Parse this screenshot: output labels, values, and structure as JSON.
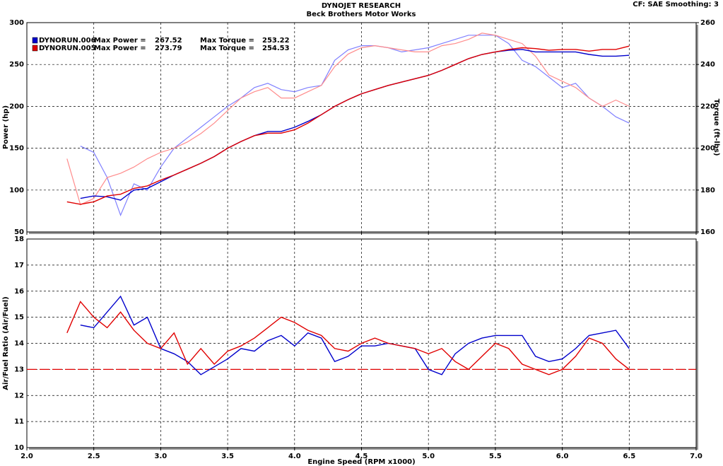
{
  "header": {
    "title": "DYNOJET RESEARCH",
    "subtitle": "Beck Brothers Motor Works",
    "settings": "CF: SAE  Smoothing: 3"
  },
  "chart_data": [
    {
      "type": "line",
      "ylabel": "Power (hp)",
      "y2label": "Torque (ft-lbs)",
      "legend_labels": {
        "power": "Max Power =",
        "torque": "Max Torque ="
      },
      "x": [
        2.3,
        2.4,
        2.5,
        2.6,
        2.7,
        2.8,
        2.9,
        3.0,
        3.1,
        3.2,
        3.3,
        3.4,
        3.5,
        3.6,
        3.7,
        3.8,
        3.9,
        4.0,
        4.1,
        4.2,
        4.3,
        4.4,
        4.5,
        4.6,
        4.7,
        4.8,
        4.9,
        5.0,
        5.1,
        5.2,
        5.3,
        5.4,
        5.5,
        5.6,
        5.7,
        5.8,
        5.9,
        6.0,
        6.1,
        6.2,
        6.3,
        6.4,
        6.5
      ],
      "xlim": [
        2,
        7
      ],
      "ylim": [
        50,
        300
      ],
      "yticks": [
        50,
        100,
        150,
        200,
        250,
        300
      ],
      "y2lim": [
        160,
        260
      ],
      "y2ticks": [
        160,
        180,
        200,
        220,
        240,
        260
      ],
      "grid": true,
      "series": [
        {
          "name": "DYNORUN.006",
          "color": "#0000cc",
          "torque_color": "#8080ff",
          "max_power": 267.52,
          "max_torque": 253.22,
          "power": [
            null,
            90,
            93,
            92,
            88,
            100,
            102,
            110,
            118,
            125,
            132,
            140,
            150,
            158,
            165,
            170,
            170,
            175,
            182,
            190,
            200,
            208,
            215,
            220,
            225,
            229,
            233,
            237,
            243,
            250,
            257,
            262,
            265,
            267,
            268,
            265,
            265,
            265,
            265,
            262,
            260,
            260,
            261
          ],
          "torque": [
            null,
            201,
            198,
            186,
            168,
            183,
            180,
            191,
            200,
            205,
            210,
            215,
            220,
            224,
            229,
            231,
            228,
            227,
            229,
            230,
            242,
            247,
            249,
            249,
            248,
            246,
            247,
            248,
            250,
            252,
            254,
            254,
            254,
            250,
            242,
            239,
            234,
            229,
            231,
            224,
            220,
            215,
            212
          ]
        },
        {
          "name": "DYNORUN.005",
          "color": "#e00000",
          "torque_color": "#ff8c8c",
          "max_power": 273.79,
          "max_torque": 254.53,
          "power": [
            86,
            83,
            86,
            93,
            95,
            102,
            105,
            112,
            118,
            125,
            132,
            140,
            150,
            158,
            165,
            168,
            168,
            172,
            180,
            190,
            200,
            208,
            215,
            220,
            225,
            229,
            233,
            237,
            243,
            250,
            257,
            262,
            265,
            268,
            270,
            269,
            267,
            268,
            268,
            266,
            268,
            268,
            272
          ],
          "torque": [
            195,
            173,
            176,
            186,
            188,
            191,
            195,
            198,
            200,
            203,
            207,
            212,
            218,
            224,
            227,
            229,
            224,
            224,
            227,
            230,
            239,
            245,
            248,
            249,
            248,
            247,
            246,
            246,
            249,
            250,
            252,
            255,
            254,
            252,
            250,
            244,
            235,
            232,
            229,
            224,
            220,
            223,
            220
          ]
        }
      ]
    },
    {
      "type": "line",
      "ylabel": "Air/Fuel Ratio (Air/Fuel)",
      "xlabel": "Engine Speed (RPM x1000)",
      "x": [
        2.3,
        2.4,
        2.5,
        2.6,
        2.7,
        2.8,
        2.9,
        3.0,
        3.1,
        3.2,
        3.3,
        3.4,
        3.5,
        3.6,
        3.7,
        3.8,
        3.9,
        4.0,
        4.1,
        4.2,
        4.3,
        4.4,
        4.5,
        4.6,
        4.7,
        4.8,
        4.9,
        5.0,
        5.1,
        5.2,
        5.3,
        5.4,
        5.5,
        5.6,
        5.7,
        5.8,
        5.9,
        6.0,
        6.1,
        6.2,
        6.3,
        6.4,
        6.5
      ],
      "xlim": [
        2,
        7
      ],
      "xticks": [
        {
          "value": 2,
          "label": "2.0"
        },
        2.5,
        {
          "value": 3,
          "label": "3.0"
        },
        3.5,
        {
          "value": 4,
          "label": "4.0"
        },
        4.5,
        {
          "value": 5,
          "label": "5.0"
        },
        5.5,
        {
          "value": 6,
          "label": "6.0"
        },
        6.5,
        {
          "value": 7,
          "label": "7.0"
        }
      ],
      "ylim": [
        10,
        18
      ],
      "yticks": [
        10,
        11,
        12,
        13,
        14,
        15,
        16,
        17,
        18
      ],
      "grid": true,
      "reference_line": 13,
      "reference_color": "#e00000",
      "series": [
        {
          "name": "DYNORUN.006",
          "color": "#0000cc",
          "values": [
            null,
            14.7,
            14.6,
            15.2,
            15.8,
            14.7,
            15.0,
            13.8,
            13.6,
            13.3,
            12.8,
            13.1,
            13.4,
            13.8,
            13.7,
            14.1,
            14.3,
            13.9,
            14.4,
            14.2,
            13.3,
            13.5,
            13.9,
            13.9,
            14.0,
            13.9,
            13.8,
            13.0,
            12.8,
            13.6,
            14.0,
            14.2,
            14.3,
            14.3,
            14.3,
            13.5,
            13.3,
            13.4,
            13.8,
            14.3,
            14.4,
            14.5,
            13.8
          ]
        },
        {
          "name": "DYNORUN.005",
          "color": "#e00000",
          "values": [
            14.4,
            15.6,
            15.0,
            14.6,
            15.2,
            14.5,
            14.0,
            13.8,
            14.4,
            13.2,
            13.8,
            13.2,
            13.7,
            13.9,
            14.2,
            14.6,
            15.0,
            14.8,
            14.5,
            14.3,
            13.8,
            13.7,
            14.0,
            14.2,
            14.0,
            13.9,
            13.8,
            13.6,
            13.8,
            13.3,
            13.0,
            13.5,
            14.0,
            13.8,
            13.2,
            13.0,
            12.8,
            13.0,
            13.5,
            14.2,
            14.0,
            13.4,
            13.0
          ]
        }
      ]
    }
  ]
}
